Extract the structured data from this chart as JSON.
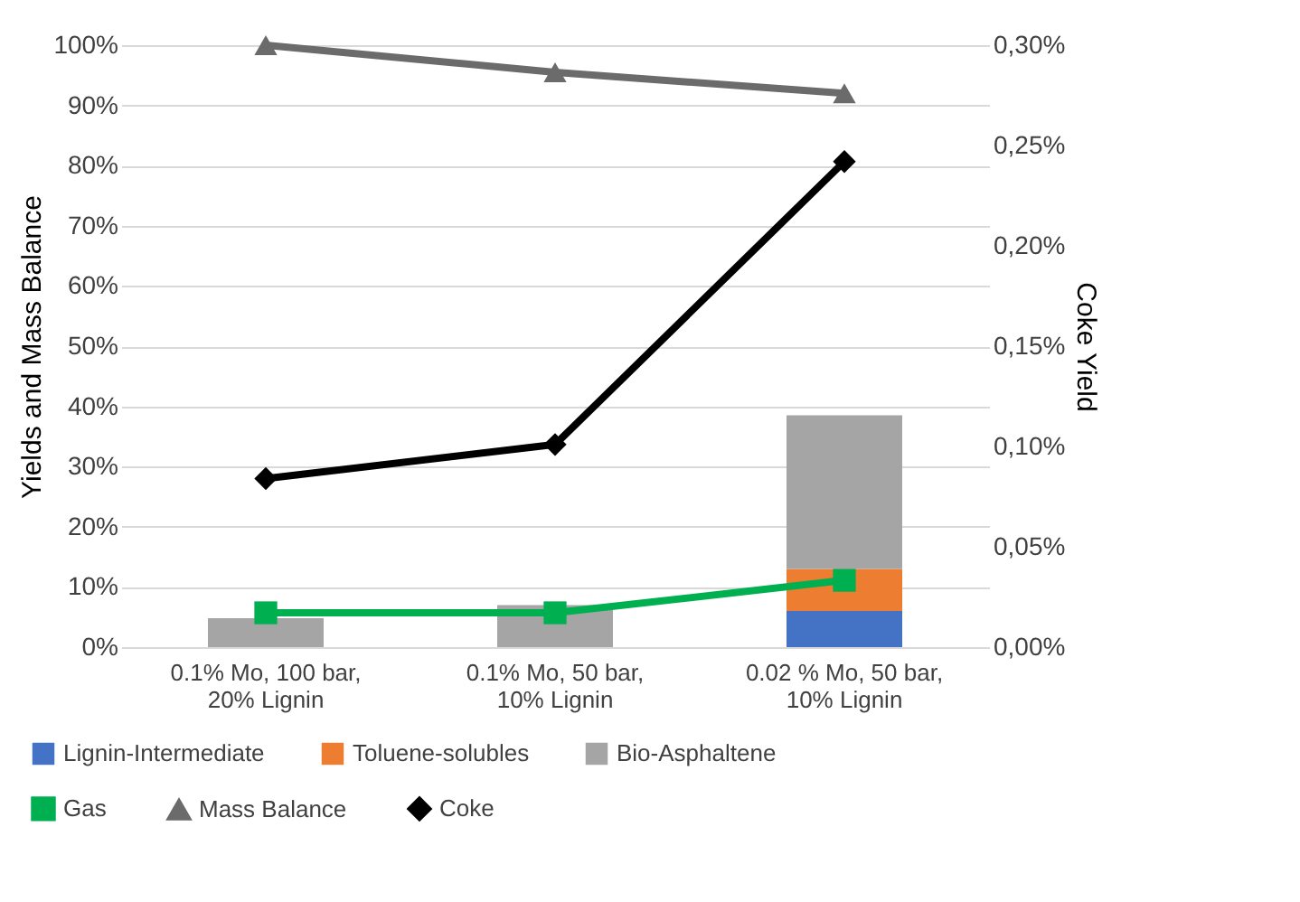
{
  "chart_data": {
    "type": "bar",
    "stacked": true,
    "grid": "y",
    "legend": "bottom",
    "line_style": "solid",
    "xlabel": null,
    "ylabel": "Yields and Mass Balance",
    "y2label": "Coke Yield",
    "categories": [
      "0.1% Mo, 100 bar, 20% Lignin",
      "0.1% Mo, 50 bar, 10% Lignin",
      "0.02 % Mo, 50 bar, 10% Lignin"
    ],
    "ylim": [
      0,
      100
    ],
    "yticks": [
      {
        "value": 0,
        "label": "0%"
      },
      {
        "value": 10,
        "label": "10%"
      },
      {
        "value": 20,
        "label": "20%"
      },
      {
        "value": 30,
        "label": "30%"
      },
      {
        "value": 40,
        "label": "40%"
      },
      {
        "value": 50,
        "label": "50%"
      },
      {
        "value": 60,
        "label": "60%"
      },
      {
        "value": 70,
        "label": "70%"
      },
      {
        "value": 80,
        "label": "80%"
      },
      {
        "value": 90,
        "label": "90%"
      },
      {
        "value": 100,
        "label": "100%"
      }
    ],
    "y2lim": [
      0,
      0.3
    ],
    "y2ticks": [
      {
        "value": 0,
        "label": "0,00%"
      },
      {
        "value": 0.05,
        "label": "0,05%"
      },
      {
        "value": 0.1,
        "label": "0,10%"
      },
      {
        "value": 0.15,
        "label": "0,15%"
      },
      {
        "value": 0.2,
        "label": "0,20%"
      },
      {
        "value": 0.25,
        "label": "0,25%"
      },
      {
        "value": 0.3,
        "label": "0,30%"
      }
    ],
    "series": [
      {
        "name": "Lignin-Intermediate",
        "type": "bar",
        "color": "#4472c4",
        "values": [
          null,
          null,
          6
        ]
      },
      {
        "name": "Toluene-solubles",
        "type": "bar",
        "color": "#ed7d31",
        "values": [
          null,
          null,
          7
        ]
      },
      {
        "name": "Bio-Asphaltene",
        "type": "bar",
        "color": "#a5a5a5",
        "values": [
          4.8,
          7,
          25.5
        ]
      },
      {
        "name": "Gas",
        "type": "line",
        "color": "#00b050",
        "marker": "square",
        "values": [
          5.7,
          5.7,
          11.1
        ]
      },
      {
        "name": "Mass Balance",
        "type": "line",
        "color": "#6b6b6b",
        "marker": "triangle",
        "values": [
          100,
          95.5,
          92
        ]
      },
      {
        "name": "Coke",
        "type": "line",
        "color": "#000000",
        "marker": "diamond",
        "axis": "y2",
        "values": [
          0.084,
          0.101,
          0.242
        ]
      }
    ]
  }
}
